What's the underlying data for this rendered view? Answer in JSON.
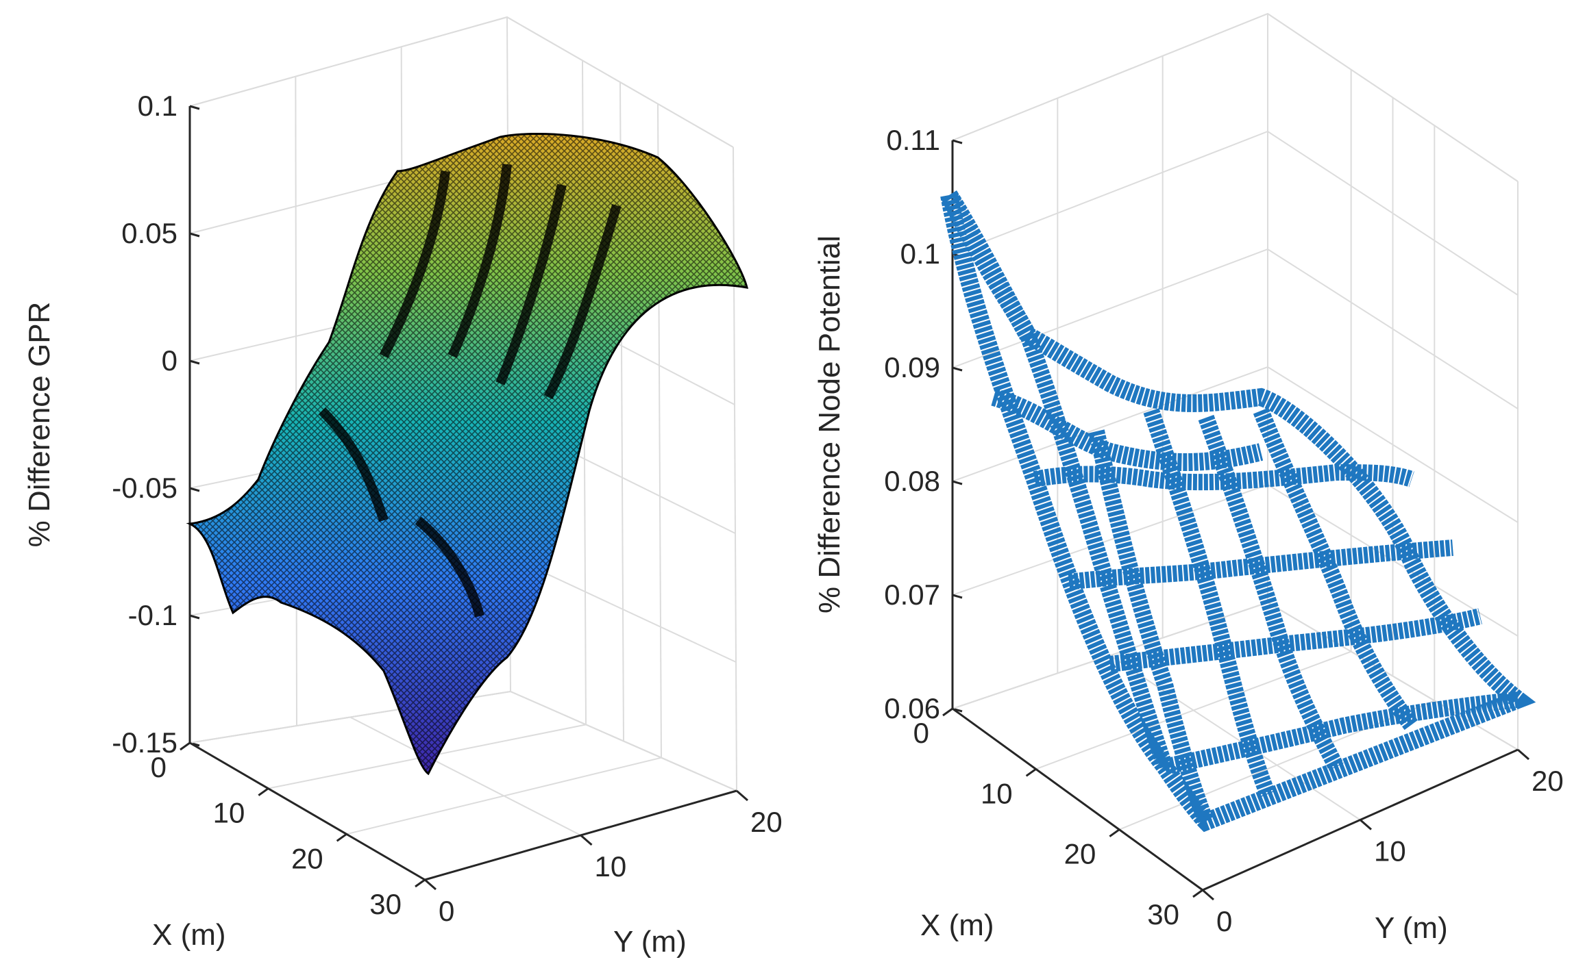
{
  "chart_data": [
    {
      "type": "surface3d",
      "zlabel": "% Difference GPR",
      "xlabel": "X  (m)",
      "ylabel": "Y  (m)",
      "xlim": [
        0,
        30
      ],
      "ylim": [
        0,
        20
      ],
      "zlim": [
        -0.15,
        0.1
      ],
      "x_ticks": [
        "0",
        "10",
        "20",
        "30"
      ],
      "y_ticks": [
        "0",
        "10",
        "20"
      ],
      "z_ticks": [
        "0.1",
        "0.05",
        "0",
        "-0.05",
        "-0.1",
        "-0.15"
      ],
      "colormap": [
        "#3e26a8",
        "#2f7bf5",
        "#18b3b4",
        "#7fc24a",
        "#d9a826"
      ],
      "edge_color": "#000000",
      "approx_extremes": {
        "min": -0.15,
        "max": 0.1
      }
    },
    {
      "type": "mesh3d",
      "zlabel": "% Difference Node Potential",
      "xlabel": "X  (m)",
      "ylabel": "Y  (m)",
      "xlim": [
        0,
        30
      ],
      "ylim": [
        0,
        20
      ],
      "zlim": [
        0.06,
        0.11
      ],
      "x_ticks": [
        "0",
        "10",
        "20",
        "30"
      ],
      "y_ticks": [
        "0",
        "10",
        "20"
      ],
      "z_ticks": [
        "0.11",
        "0.1",
        "0.09",
        "0.08",
        "0.07",
        "0.06"
      ],
      "marker": "*",
      "color": "#1f77c0",
      "approx_extremes": {
        "min": 0.062,
        "max": 0.105
      }
    }
  ]
}
